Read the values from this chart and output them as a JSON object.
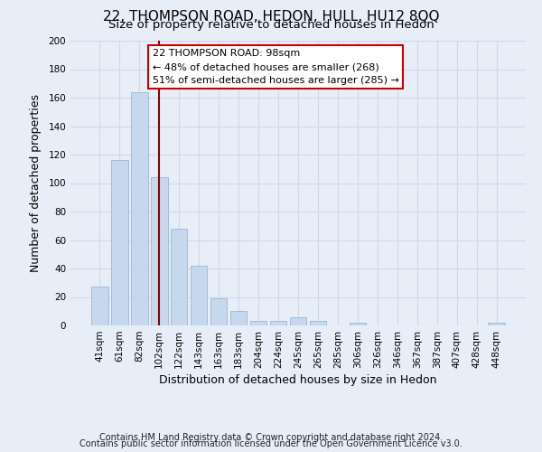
{
  "title": "22, THOMPSON ROAD, HEDON, HULL, HU12 8QQ",
  "subtitle": "Size of property relative to detached houses in Hedon",
  "xlabel": "Distribution of detached houses by size in Hedon",
  "ylabel": "Number of detached properties",
  "bar_labels": [
    "41sqm",
    "61sqm",
    "82sqm",
    "102sqm",
    "122sqm",
    "143sqm",
    "163sqm",
    "183sqm",
    "204sqm",
    "224sqm",
    "245sqm",
    "265sqm",
    "285sqm",
    "306sqm",
    "326sqm",
    "346sqm",
    "367sqm",
    "387sqm",
    "407sqm",
    "428sqm",
    "448sqm"
  ],
  "bar_values": [
    27,
    116,
    164,
    104,
    68,
    42,
    19,
    10,
    3,
    3,
    6,
    3,
    0,
    2,
    0,
    0,
    0,
    0,
    0,
    0,
    2
  ],
  "bar_color": "#c5d8ed",
  "bar_edge_color": "#9ab8d0",
  "vline_x_index": 3,
  "vline_color": "#880000",
  "ylim": [
    0,
    200
  ],
  "yticks": [
    0,
    20,
    40,
    60,
    80,
    100,
    120,
    140,
    160,
    180,
    200
  ],
  "annotation_box_text": "22 THOMPSON ROAD: 98sqm\n← 48% of detached houses are smaller (268)\n51% of semi-detached houses are larger (285) →",
  "annotation_box_color": "#ffffff",
  "annotation_box_edge_color": "#cc0000",
  "footer_line1": "Contains HM Land Registry data © Crown copyright and database right 2024.",
  "footer_line2": "Contains public sector information licensed under the Open Government Licence v3.0.",
  "background_color": "#e8eef8",
  "plot_bg_color": "#e8eef8",
  "grid_color": "#d0d8e8",
  "title_fontsize": 11,
  "subtitle_fontsize": 9.5,
  "axis_label_fontsize": 9,
  "tick_fontsize": 7.5,
  "annotation_fontsize": 8,
  "footer_fontsize": 7
}
